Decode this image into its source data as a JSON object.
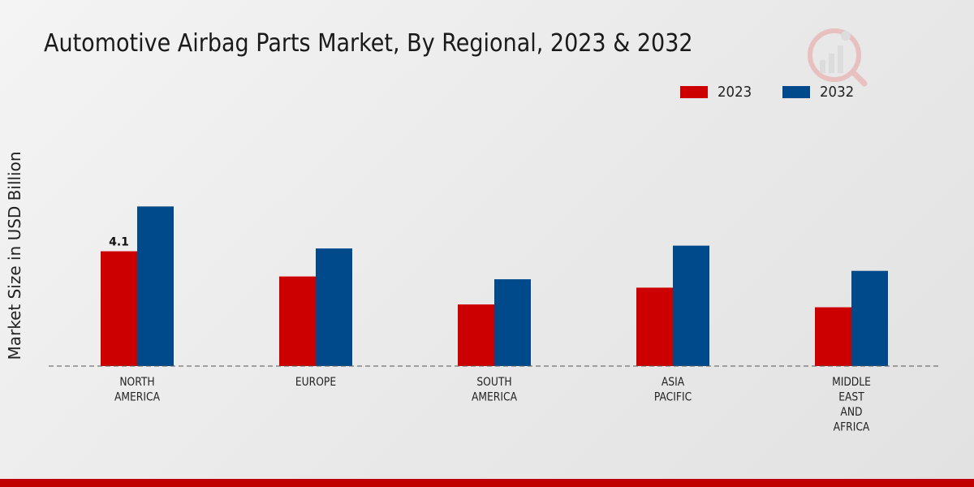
{
  "colors": {
    "s2023": "#cc0000",
    "s2032": "#004a8c",
    "baseline": "#555555",
    "accent": "#c00000"
  },
  "legend": {
    "item1": "2023",
    "item2": "2032"
  },
  "chart_data": {
    "type": "bar",
    "title": "Automotive Airbag Parts Market, By Regional, 2023 & 2032",
    "ylabel": "Market Size in USD Billion",
    "xlabel": "",
    "categories": [
      [
        "NORTH",
        "AMERICA"
      ],
      [
        "EUROPE"
      ],
      [
        "SOUTH",
        "AMERICA"
      ],
      [
        "ASIA",
        "PACIFIC"
      ],
      [
        "MIDDLE",
        "EAST",
        "AND",
        "AFRICA"
      ]
    ],
    "series": [
      {
        "name": "2023",
        "values": [
          4.1,
          3.2,
          2.2,
          2.8,
          2.1
        ]
      },
      {
        "name": "2032",
        "values": [
          5.7,
          4.2,
          3.1,
          4.3,
          3.4
        ]
      }
    ],
    "data_labels": [
      {
        "series": 0,
        "index": 0,
        "text": "4.1"
      }
    ],
    "ylim": [
      0,
      10
    ],
    "grid": false,
    "legend_position": "top-right"
  }
}
